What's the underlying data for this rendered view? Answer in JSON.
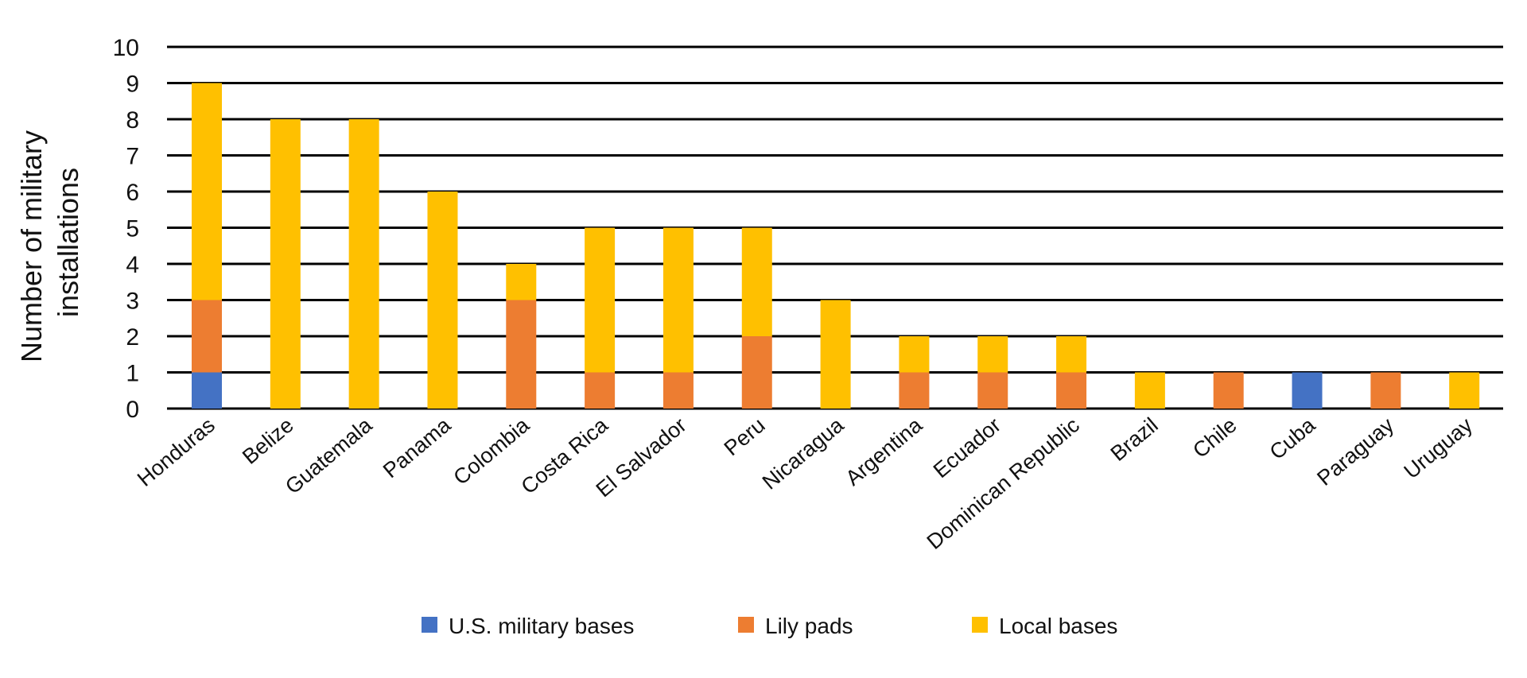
{
  "chart_data": {
    "type": "bar",
    "stacked": true,
    "title": "",
    "xlabel": "",
    "ylabel_lines": [
      "Number of military",
      "installations"
    ],
    "ylim": [
      0,
      10
    ],
    "yticks": [
      0,
      1,
      2,
      3,
      4,
      5,
      6,
      7,
      8,
      9,
      10
    ],
    "grid": true,
    "legend_position": "bottom",
    "categories": [
      "Honduras",
      "Belize",
      "Guatemala",
      "Panama",
      "Colombia",
      "Costa Rica",
      "El Salvador",
      "Peru",
      "Nicaragua",
      "Argentina",
      "Ecuador",
      "Dominican Republic",
      "Brazil",
      "Chile",
      "Cuba",
      "Paraguay",
      "Uruguay"
    ],
    "series": [
      {
        "name": "U.S. military bases",
        "color": "#4472C4",
        "values": [
          1,
          0,
          0,
          0,
          0,
          0,
          0,
          0,
          0,
          0,
          0,
          0,
          0,
          0,
          1,
          0,
          0
        ]
      },
      {
        "name": "Lily pads",
        "color": "#ED7D31",
        "values": [
          2,
          0,
          0,
          0,
          3,
          1,
          1,
          2,
          0,
          1,
          1,
          1,
          0,
          1,
          0,
          1,
          0
        ]
      },
      {
        "name": "Local bases",
        "color": "#FFC000",
        "values": [
          6,
          8,
          8,
          6,
          1,
          4,
          4,
          3,
          3,
          1,
          1,
          1,
          1,
          0,
          0,
          0,
          1
        ]
      }
    ]
  }
}
